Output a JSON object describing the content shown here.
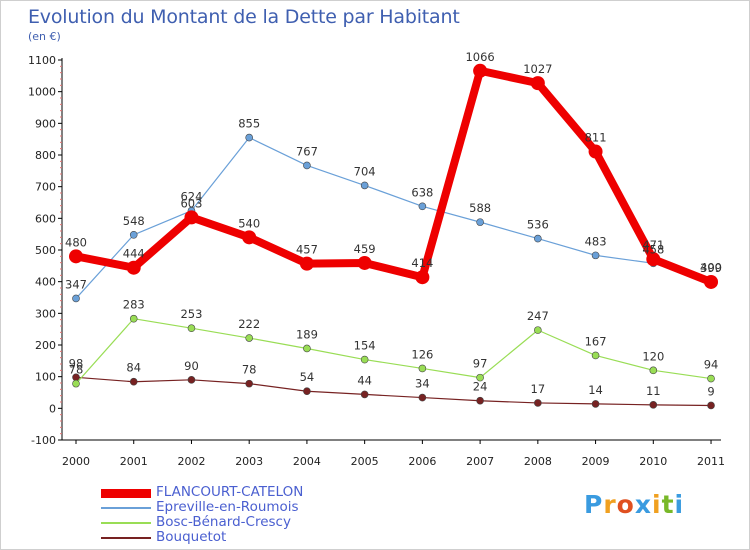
{
  "title": "Evolution du Montant de la Dette par Habitant",
  "subtitle": "(en €)",
  "logo": {
    "text": "Proxiti",
    "colors": [
      "#3a9be0",
      "#f0a020",
      "#e05020",
      "#3a9be0",
      "#f0a020",
      "#78b828",
      "#3a9be0"
    ]
  },
  "chart_data": {
    "type": "line",
    "title": "Evolution du Montant de la Dette par Habitant",
    "ylabel": "(en €)",
    "xlabel": "",
    "ylim": [
      -100,
      1100
    ],
    "yticks": [
      -100,
      0,
      100,
      200,
      300,
      400,
      500,
      600,
      700,
      800,
      900,
      1000,
      1100
    ],
    "grid": false,
    "legend": "bottom-left",
    "x": [
      "2000",
      "2001",
      "2002",
      "2003",
      "2004",
      "2005",
      "2006",
      "2007",
      "2008",
      "2009",
      "2010",
      "2011"
    ],
    "series": [
      {
        "name": "FLANCOURT-CATELON",
        "color": "#ee0000",
        "values": [
          480,
          444,
          603,
          540,
          457,
          459,
          414,
          1066,
          1027,
          811,
          471,
          399
        ]
      },
      {
        "name": "Epreville-en-Roumois",
        "color": "#6aa0d8",
        "values": [
          347,
          548,
          624,
          855,
          767,
          704,
          638,
          588,
          536,
          483,
          458,
          400
        ]
      },
      {
        "name": "Bosc-Bénard-Crescy",
        "color": "#99dd55",
        "values": [
          78,
          283,
          253,
          222,
          189,
          154,
          126,
          97,
          247,
          167,
          120,
          94
        ]
      },
      {
        "name": "Bouquetot",
        "color": "#772222",
        "values": [
          98,
          84,
          90,
          78,
          54,
          44,
          34,
          24,
          17,
          14,
          11,
          9
        ]
      }
    ]
  }
}
